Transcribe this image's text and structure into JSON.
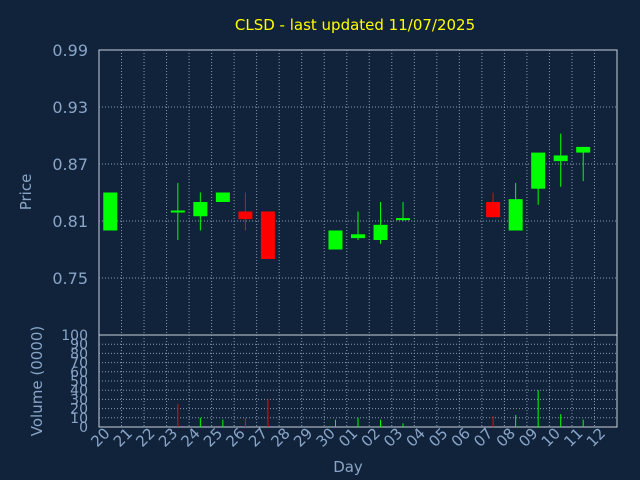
{
  "chart_data": [
    {
      "type": "candlestick",
      "title": "CLSD - last updated 11/07/2025",
      "ylabel": "Price",
      "ylim": [
        0.69,
        0.99
      ],
      "y_ticks": [
        "0.99",
        "0.93",
        "0.87",
        "0.81",
        "0.75"
      ],
      "x_tick_labels": [
        "20",
        "21",
        "22",
        "23",
        "24",
        "25",
        "26",
        "27",
        "28",
        "29",
        "30",
        "01",
        "02",
        "03",
        "04",
        "05",
        "06",
        "07",
        "08",
        "09",
        "10",
        "11",
        "12"
      ],
      "candles": [
        {
          "x": 0,
          "open": 0.8,
          "close": 0.84,
          "low": 0.8,
          "high": 0.84
        },
        {
          "x": 3,
          "open": 0.82,
          "close": 0.82,
          "low": 0.79,
          "high": 0.85
        },
        {
          "x": 4,
          "open": 0.815,
          "close": 0.83,
          "low": 0.8,
          "high": 0.84
        },
        {
          "x": 5,
          "open": 0.83,
          "close": 0.84,
          "low": 0.83,
          "high": 0.84
        },
        {
          "x": 6,
          "open": 0.82,
          "close": 0.812,
          "low": 0.8,
          "high": 0.84
        },
        {
          "x": 7,
          "open": 0.82,
          "close": 0.77,
          "low": 0.77,
          "high": 0.82
        },
        {
          "x": 10,
          "open": 0.78,
          "close": 0.8,
          "low": 0.78,
          "high": 0.8
        },
        {
          "x": 11,
          "open": 0.792,
          "close": 0.796,
          "low": 0.79,
          "high": 0.82
        },
        {
          "x": 12,
          "open": 0.79,
          "close": 0.806,
          "low": 0.786,
          "high": 0.83
        },
        {
          "x": 13,
          "open": 0.81,
          "close": 0.812,
          "low": 0.81,
          "high": 0.83
        },
        {
          "x": 17,
          "open": 0.83,
          "close": 0.814,
          "low": 0.814,
          "high": 0.84
        },
        {
          "x": 18,
          "open": 0.8,
          "close": 0.833,
          "low": 0.8,
          "high": 0.85
        },
        {
          "x": 19,
          "open": 0.844,
          "close": 0.882,
          "low": 0.827,
          "high": 0.882
        },
        {
          "x": 20,
          "open": 0.873,
          "close": 0.879,
          "low": 0.846,
          "high": 0.902
        },
        {
          "x": 21,
          "open": 0.882,
          "close": 0.888,
          "low": 0.852,
          "high": 0.888
        }
      ]
    },
    {
      "type": "bar",
      "ylabel": "Volume (0000)",
      "xlabel": "Day",
      "ylim": [
        0,
        100
      ],
      "y_ticks": [
        "100",
        "90",
        "80",
        "70",
        "60",
        "50",
        "40",
        "30",
        "20",
        "10",
        "0"
      ],
      "x_tick_labels": [
        "20",
        "21",
        "22",
        "23",
        "24",
        "25",
        "26",
        "27",
        "28",
        "29",
        "30",
        "01",
        "02",
        "03",
        "04",
        "05",
        "06",
        "07",
        "08",
        "09",
        "10",
        "11",
        "12"
      ],
      "bars": [
        {
          "x": 3,
          "value": 25,
          "color": "#ff0000"
        },
        {
          "x": 4,
          "value": 10,
          "color": "#00ff00"
        },
        {
          "x": 5,
          "value": 8,
          "color": "#00ff00"
        },
        {
          "x": 6,
          "value": 10,
          "color": "#ff0000"
        },
        {
          "x": 7,
          "value": 30,
          "color": "#ff0000"
        },
        {
          "x": 10,
          "value": 8,
          "color": "#00ff00"
        },
        {
          "x": 11,
          "value": 10,
          "color": "#00ff00"
        },
        {
          "x": 12,
          "value": 8,
          "color": "#00ff00"
        },
        {
          "x": 13,
          "value": 4,
          "color": "#00ff00"
        },
        {
          "x": 17,
          "value": 12,
          "color": "#ff0000"
        },
        {
          "x": 18,
          "value": 13,
          "color": "#00ff00"
        },
        {
          "x": 19,
          "value": 40,
          "color": "#00ff00"
        },
        {
          "x": 20,
          "value": 14,
          "color": "#00ff00"
        },
        {
          "x": 21,
          "value": 8,
          "color": "#00ff00"
        }
      ]
    }
  ],
  "colors": {
    "background": "#10233a",
    "up": "#00ff00",
    "down": "#ff0000",
    "title": "#ffff00",
    "axis_text": "#8aa5c8",
    "grid": "#8a9bb0",
    "frame": "#c8d2dc"
  }
}
